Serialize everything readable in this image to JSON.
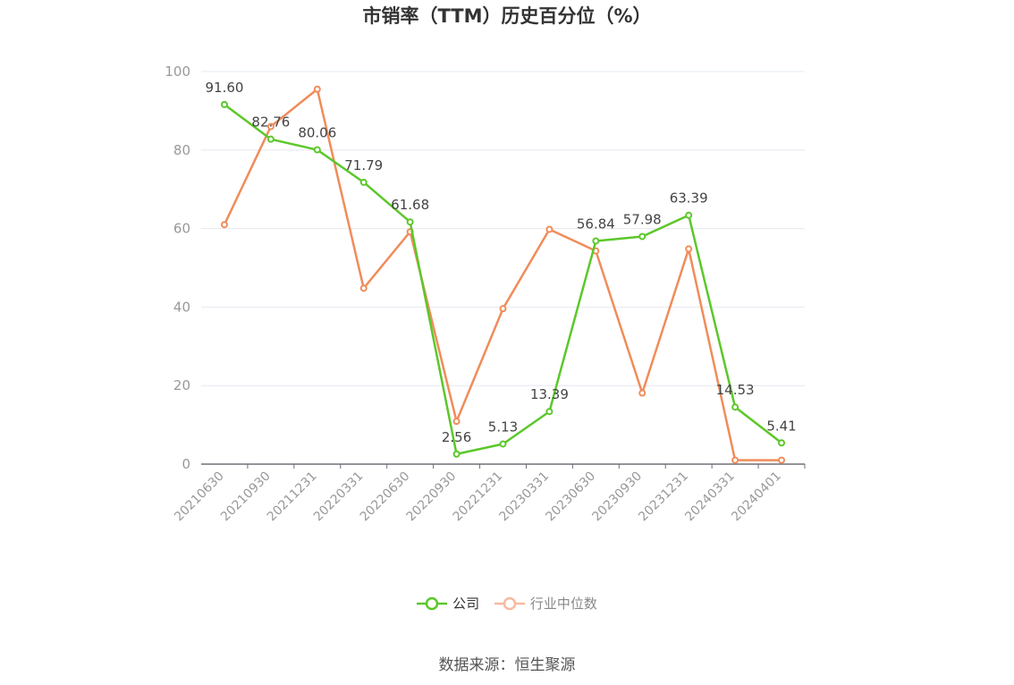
{
  "chart_data": {
    "type": "line",
    "title": "市销率（TTM）历史百分位（%）",
    "categories": [
      "20210630",
      "20210930",
      "20211231",
      "20220331",
      "20220630",
      "20220930",
      "20221231",
      "20230331",
      "20230630",
      "20230930",
      "20231231",
      "20240331",
      "20240401"
    ],
    "series": [
      {
        "name": "公司",
        "color": "#5cc72a",
        "labeled": true,
        "values": [
          91.6,
          82.76,
          80.06,
          71.79,
          61.68,
          2.56,
          5.13,
          13.39,
          56.84,
          57.98,
          63.39,
          14.53,
          5.41
        ]
      },
      {
        "name": "行业中位数",
        "color": "#f08c5a",
        "labeled": false,
        "values": [
          61.0,
          86.0,
          95.5,
          44.8,
          59.2,
          10.9,
          39.6,
          59.8,
          54.3,
          18.1,
          54.8,
          1.0,
          1.0
        ]
      }
    ],
    "ylim": [
      0,
      100
    ],
    "yticks": [
      0,
      20,
      40,
      60,
      80,
      100
    ],
    "grid": true,
    "legend_position": "bottom"
  },
  "legend": {
    "company": "公司",
    "industry": "行业中位数"
  },
  "source": "数据来源：恒生聚源",
  "colors": {
    "company": "#5cc72a",
    "industry": "#f08c5a",
    "industry_legend": "#f8b9a0",
    "axis": "#999999",
    "grid": "#e6e8f0"
  }
}
